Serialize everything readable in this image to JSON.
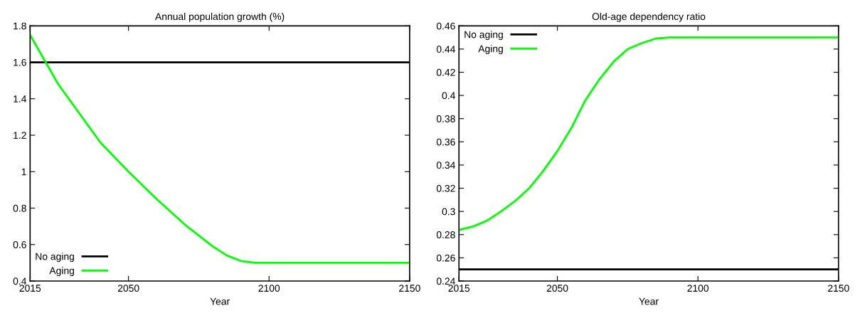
{
  "chart_data": [
    {
      "type": "line",
      "title": "Annual population growth (%)",
      "xlabel": "Year",
      "xlim": [
        2015,
        2150
      ],
      "xticks": [
        2015,
        2050,
        2100,
        2150
      ],
      "ylim": [
        0.4,
        1.8
      ],
      "yticks": [
        0.4,
        0.6,
        0.8,
        1,
        1.2,
        1.4,
        1.6,
        1.8
      ],
      "grid": false,
      "legend": "bottom left",
      "marker": "none",
      "line_style": "solid",
      "series": [
        {
          "name": "No aging",
          "color": "#000000",
          "x": [
            2015,
            2150
          ],
          "values": [
            1.6,
            1.6
          ]
        },
        {
          "name": "Aging",
          "color": "#00ff00",
          "x": [
            2015,
            2025,
            2040,
            2050,
            2060,
            2070,
            2080,
            2085,
            2090,
            2095,
            2150
          ],
          "values": [
            1.75,
            1.48,
            1.16,
            1.0,
            0.85,
            0.71,
            0.59,
            0.54,
            0.51,
            0.5,
            0.5
          ]
        }
      ]
    },
    {
      "type": "line",
      "title": "Old-age dependency ratio",
      "xlabel": "Year",
      "xlim": [
        2015,
        2150
      ],
      "xticks": [
        2015,
        2050,
        2100,
        2150
      ],
      "ylim": [
        0.24,
        0.46
      ],
      "yticks": [
        0.24,
        0.26,
        0.28,
        0.3,
        0.32,
        0.34,
        0.36,
        0.38,
        0.4,
        0.42,
        0.44,
        0.46
      ],
      "grid": false,
      "legend": "top left",
      "marker": "none",
      "line_style": "solid",
      "series": [
        {
          "name": "No aging",
          "color": "#000000",
          "x": [
            2015,
            2150
          ],
          "values": [
            0.25,
            0.25
          ]
        },
        {
          "name": "Aging",
          "color": "#00ff00",
          "x": [
            2015,
            2020,
            2025,
            2030,
            2035,
            2040,
            2045,
            2050,
            2055,
            2060,
            2065,
            2070,
            2075,
            2080,
            2085,
            2090,
            2150
          ],
          "values": [
            0.284,
            0.287,
            0.292,
            0.3,
            0.309,
            0.32,
            0.335,
            0.352,
            0.372,
            0.396,
            0.414,
            0.429,
            0.44,
            0.445,
            0.449,
            0.45,
            0.45
          ]
        }
      ]
    }
  ]
}
